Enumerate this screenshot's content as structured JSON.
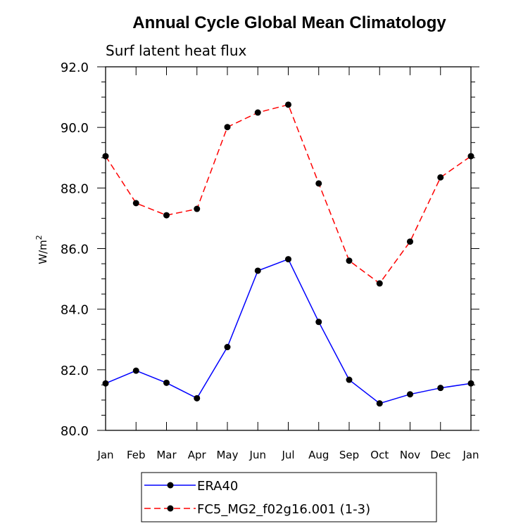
{
  "chart_data": {
    "type": "line",
    "title": "Annual Cycle Global Mean Climatology",
    "subtitle": "Surf latent heat flux",
    "ylabel": "W/m",
    "ylabel_sup": "2",
    "ylim": [
      80.0,
      92.0
    ],
    "yticks": [
      "80.0",
      "82.0",
      "84.0",
      "86.0",
      "88.0",
      "90.0",
      "92.0"
    ],
    "categories": [
      "Jan",
      "Feb",
      "Mar",
      "Apr",
      "May",
      "Jun",
      "Jul",
      "Aug",
      "Sep",
      "Oct",
      "Nov",
      "Dec",
      "Jan"
    ],
    "legend_position": "bottom",
    "series": [
      {
        "name": "ERA40",
        "color": "#0000ff",
        "dash": "solid",
        "values": [
          81.55,
          81.97,
          81.57,
          81.06,
          82.75,
          85.27,
          85.65,
          83.58,
          81.67,
          80.89,
          81.19,
          81.4,
          81.55
        ]
      },
      {
        "name": "FC5_MG2_f02g16.001 (1-3)",
        "color": "#ff0000",
        "dash": "dashed",
        "values": [
          89.05,
          87.5,
          87.1,
          87.31,
          90.01,
          90.49,
          90.75,
          88.15,
          85.6,
          84.85,
          86.23,
          88.35,
          89.05
        ]
      }
    ]
  }
}
